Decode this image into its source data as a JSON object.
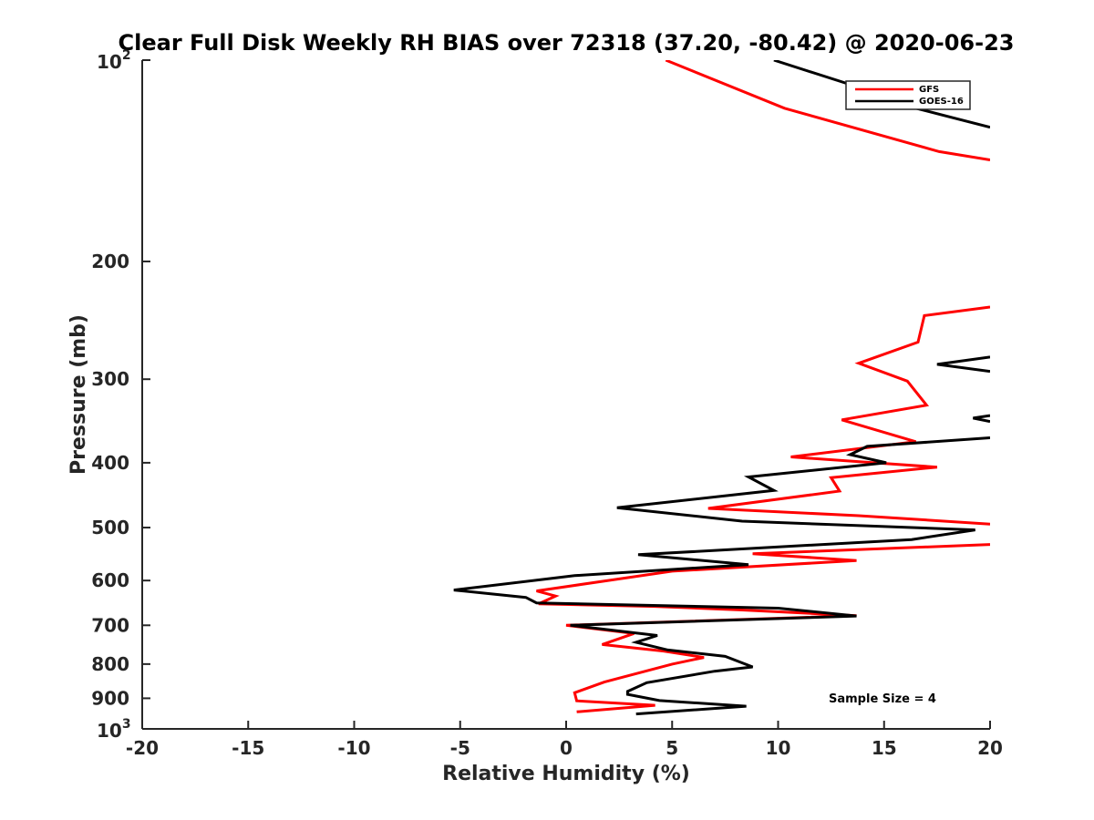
{
  "chart_data": {
    "type": "line",
    "title": "Clear Full Disk Weekly RH BIAS over 72318 (37.20, -80.42) @ 2020-06-23",
    "xlabel": "Relative Humidity (%)",
    "ylabel": "Pressure (mb)",
    "xlim": [
      -20,
      20
    ],
    "ylim": [
      100,
      1000
    ],
    "y_scale": "log",
    "y_reversed": true,
    "x_ticks": [
      "-20",
      "-15",
      "-10",
      "-5",
      "0",
      "5",
      "10",
      "15",
      "20"
    ],
    "y_ticks": [
      {
        "value": 100,
        "base": "10",
        "exp": "2"
      },
      {
        "value": 200,
        "label": "200"
      },
      {
        "value": 300,
        "label": "300"
      },
      {
        "value": 400,
        "label": "400"
      },
      {
        "value": 500,
        "label": "500"
      },
      {
        "value": 600,
        "label": "600"
      },
      {
        "value": 700,
        "label": "700"
      },
      {
        "value": 800,
        "label": "800"
      },
      {
        "value": 900,
        "label": "900"
      },
      {
        "value": 1000,
        "base": "10",
        "exp": "3"
      }
    ],
    "legend": {
      "placement": "top-right"
    },
    "annotation": "Sample Size = 4",
    "series": [
      {
        "name": "GFS",
        "color": "#ff0000",
        "points": [
          [
            4.7,
            100
          ],
          [
            10.3,
            118
          ],
          [
            17.6,
            137
          ],
          [
            20,
            141
          ],
          [
            null,
            null
          ],
          [
            20,
            234
          ],
          [
            16.9,
            241
          ],
          [
            16.6,
            264
          ],
          [
            13.8,
            284
          ],
          [
            16.1,
            302
          ],
          [
            17.0,
            328
          ],
          [
            13.0,
            345
          ],
          [
            16.5,
            372
          ],
          [
            10.6,
            392
          ],
          [
            17.5,
            406
          ],
          [
            12.5,
            421
          ],
          [
            12.9,
            441
          ],
          [
            6.7,
            468
          ],
          [
            13.8,
            480
          ],
          [
            20,
            494
          ],
          [
            null,
            null
          ],
          [
            20,
            530
          ],
          [
            8.8,
            547
          ],
          [
            13.7,
            560
          ],
          [
            5.0,
            581
          ],
          [
            -1.4,
            622
          ],
          [
            -0.5,
            633
          ],
          [
            -1.3,
            650
          ],
          [
            4.2,
            656
          ],
          [
            8.3,
            664
          ],
          [
            13.7,
            677
          ],
          [
            0.0,
            700
          ],
          [
            3.2,
            720
          ],
          [
            1.7,
            748
          ],
          [
            4.6,
            765
          ],
          [
            6.5,
            782
          ],
          [
            5.0,
            800
          ],
          [
            1.8,
            851
          ],
          [
            0.4,
            883
          ],
          [
            0.5,
            908
          ],
          [
            4.2,
            922
          ],
          [
            0.5,
            943
          ]
        ]
      },
      {
        "name": "GOES-16",
        "color": "#000000",
        "points": [
          [
            9.8,
            100
          ],
          [
            15.8,
            115
          ],
          [
            16.5,
            118
          ],
          [
            20,
            126
          ],
          [
            null,
            null
          ],
          [
            20,
            278
          ],
          [
            17.5,
            285
          ],
          [
            20,
            292
          ],
          [
            null,
            null
          ],
          [
            20,
            340
          ],
          [
            19.2,
            343
          ],
          [
            20,
            347
          ],
          [
            null,
            null
          ],
          [
            20,
            367
          ],
          [
            14.2,
            378
          ],
          [
            13.4,
            389
          ],
          [
            15.1,
            400
          ],
          [
            8.6,
            420
          ],
          [
            9.8,
            440
          ],
          [
            2.4,
            467
          ],
          [
            8.3,
            489
          ],
          [
            19.3,
            504
          ],
          [
            16.3,
            521
          ],
          [
            3.4,
            549
          ],
          [
            8.6,
            568
          ],
          [
            0.4,
            590
          ],
          [
            -5.3,
            620
          ],
          [
            -1.9,
            636
          ],
          [
            -1.4,
            648
          ],
          [
            10.0,
            660
          ],
          [
            13.7,
            678
          ],
          [
            0.2,
            700
          ],
          [
            4.3,
            725
          ],
          [
            3.3,
            742
          ],
          [
            4.8,
            762
          ],
          [
            7.5,
            779
          ],
          [
            8.8,
            808
          ],
          [
            7.0,
            820
          ],
          [
            3.8,
            853
          ],
          [
            2.9,
            879
          ],
          [
            2.9,
            888
          ],
          [
            4.4,
            907
          ],
          [
            8.5,
            925
          ],
          [
            3.3,
            950
          ]
        ]
      }
    ]
  }
}
